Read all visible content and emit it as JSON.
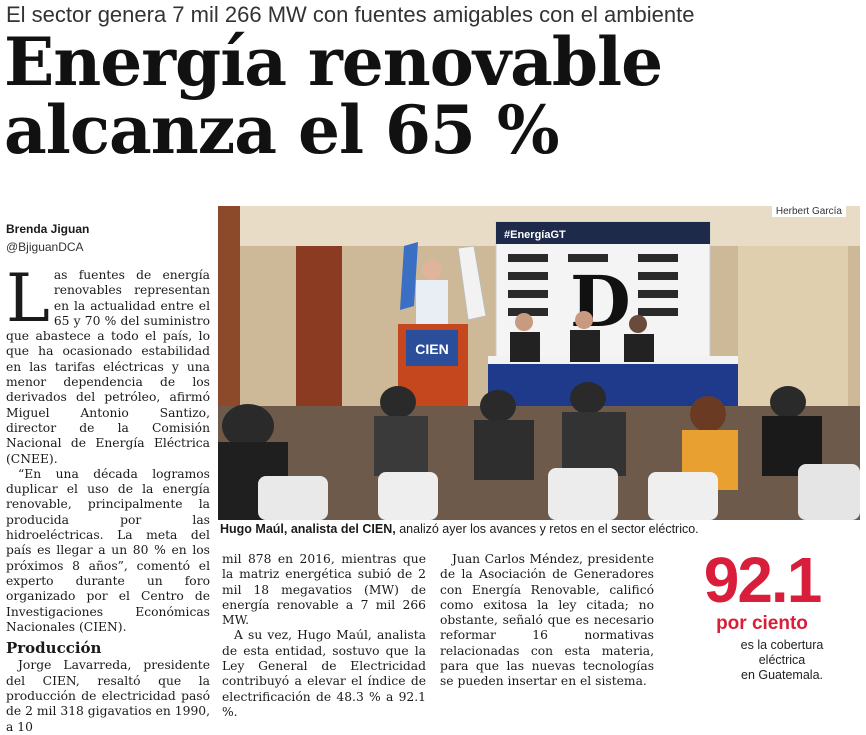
{
  "article": {
    "kicker": "El sector genera 7 mil 266 MW con fuentes amigables con el ambiente",
    "headline_line1": "Energía renovable",
    "headline_line2": "alcanza el 65 %",
    "author": "Brenda Jiguan",
    "handle": "@BjiguanDCA",
    "dropcap": "L",
    "p1": "as fuentes de energía renovables representan en la actualidad entre el 65 y 70 % del suministro que abastece a todo el país, lo que ha ocasionado estabilidad en las tarifas eléctricas y una menor dependencia de los derivados del petróleo, afirmó Miguel Antonio Santizo, director de la Comisión Nacional de Energía Eléctrica (CNEE).",
    "p2": "“En una década logramos duplicar el uso de la energía renovable, principalmente la producida por las hidroeléctricas. La meta del país es llegar a un 80 % en los próximos 8 años”, comentó el experto durante un foro organizado por el Centro de Investigaciones Económicas Nacionales (CIEN).",
    "subhead": "Producción",
    "p3": "Jorge Lavarreda, presidente del CIEN, resaltó que la producción de electricidad pasó de 2 mil 318 gigavatios en 1990, a 10",
    "p4": "mil 878 en 2016, mientras que la matriz energética subió de 2 mil 18 megavatios (MW) de energía renovable a 7 mil 266 MW.",
    "p5": "A su vez, Hugo Maúl, analista de esta entidad, sostuvo que la Ley General de Electricidad contribuyó a elevar el índice de electrificación de 48.3 % a 92.1 %.",
    "p6": "Juan Carlos Méndez, presidente de la Asociación de Generadores con Energía Renovable, calificó como exitosa la ley citada; no obstante, señaló que es necesario reformar 16 normativas relacionadas con esta materia, para que las nuevas tecnologías se pueden insertar en el sistema."
  },
  "photo": {
    "credit": "Herbert García",
    "podium_logo": "CIEN",
    "banner_hashtag": "#EnergíaGT",
    "caption_bold": "Hugo Maúl, analista del CIEN,",
    "caption_rest": " analizó ayer los avances y retos en el sector eléctrico."
  },
  "stat": {
    "number": "92.1",
    "unit": "por ciento",
    "desc1": "es la cobertura",
    "desc2": "eléctrica",
    "desc3": "en Guatemala."
  }
}
